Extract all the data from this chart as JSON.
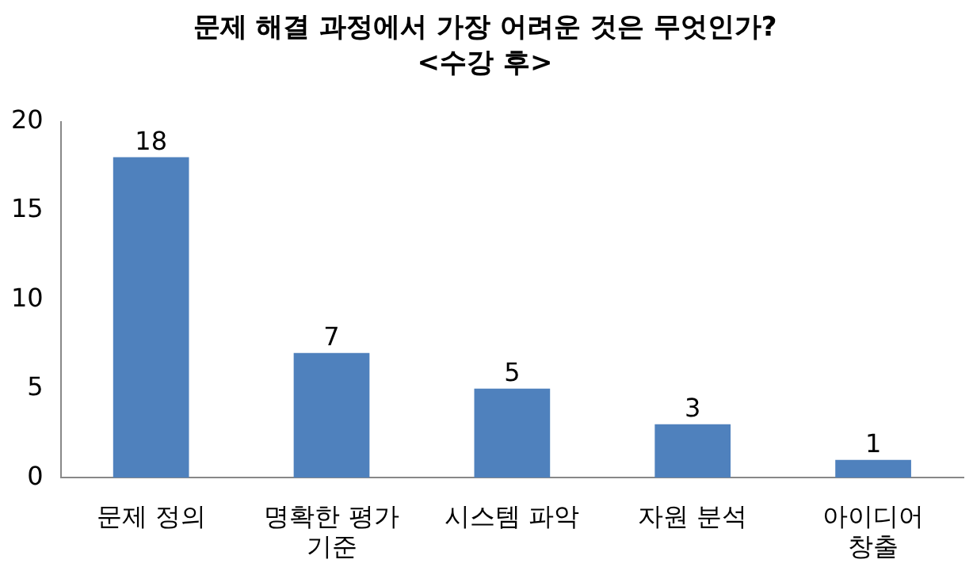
{
  "chart_data": {
    "type": "bar",
    "title": "문제 해결 과정에서 가장 어려운 것은 무엇인가?",
    "subtitle": "<수강 후>",
    "categories": [
      "문제 정의",
      "명확한 평가 기준",
      "시스템 파악",
      "자원 분석",
      "아이디어 창출"
    ],
    "values": [
      18,
      7,
      5,
      3,
      1
    ],
    "color": "#4f81bd",
    "ylim": [
      0,
      20
    ],
    "yticks": [
      0,
      5,
      10,
      15,
      20
    ],
    "grid": false,
    "legend": false,
    "data_labels": true
  }
}
